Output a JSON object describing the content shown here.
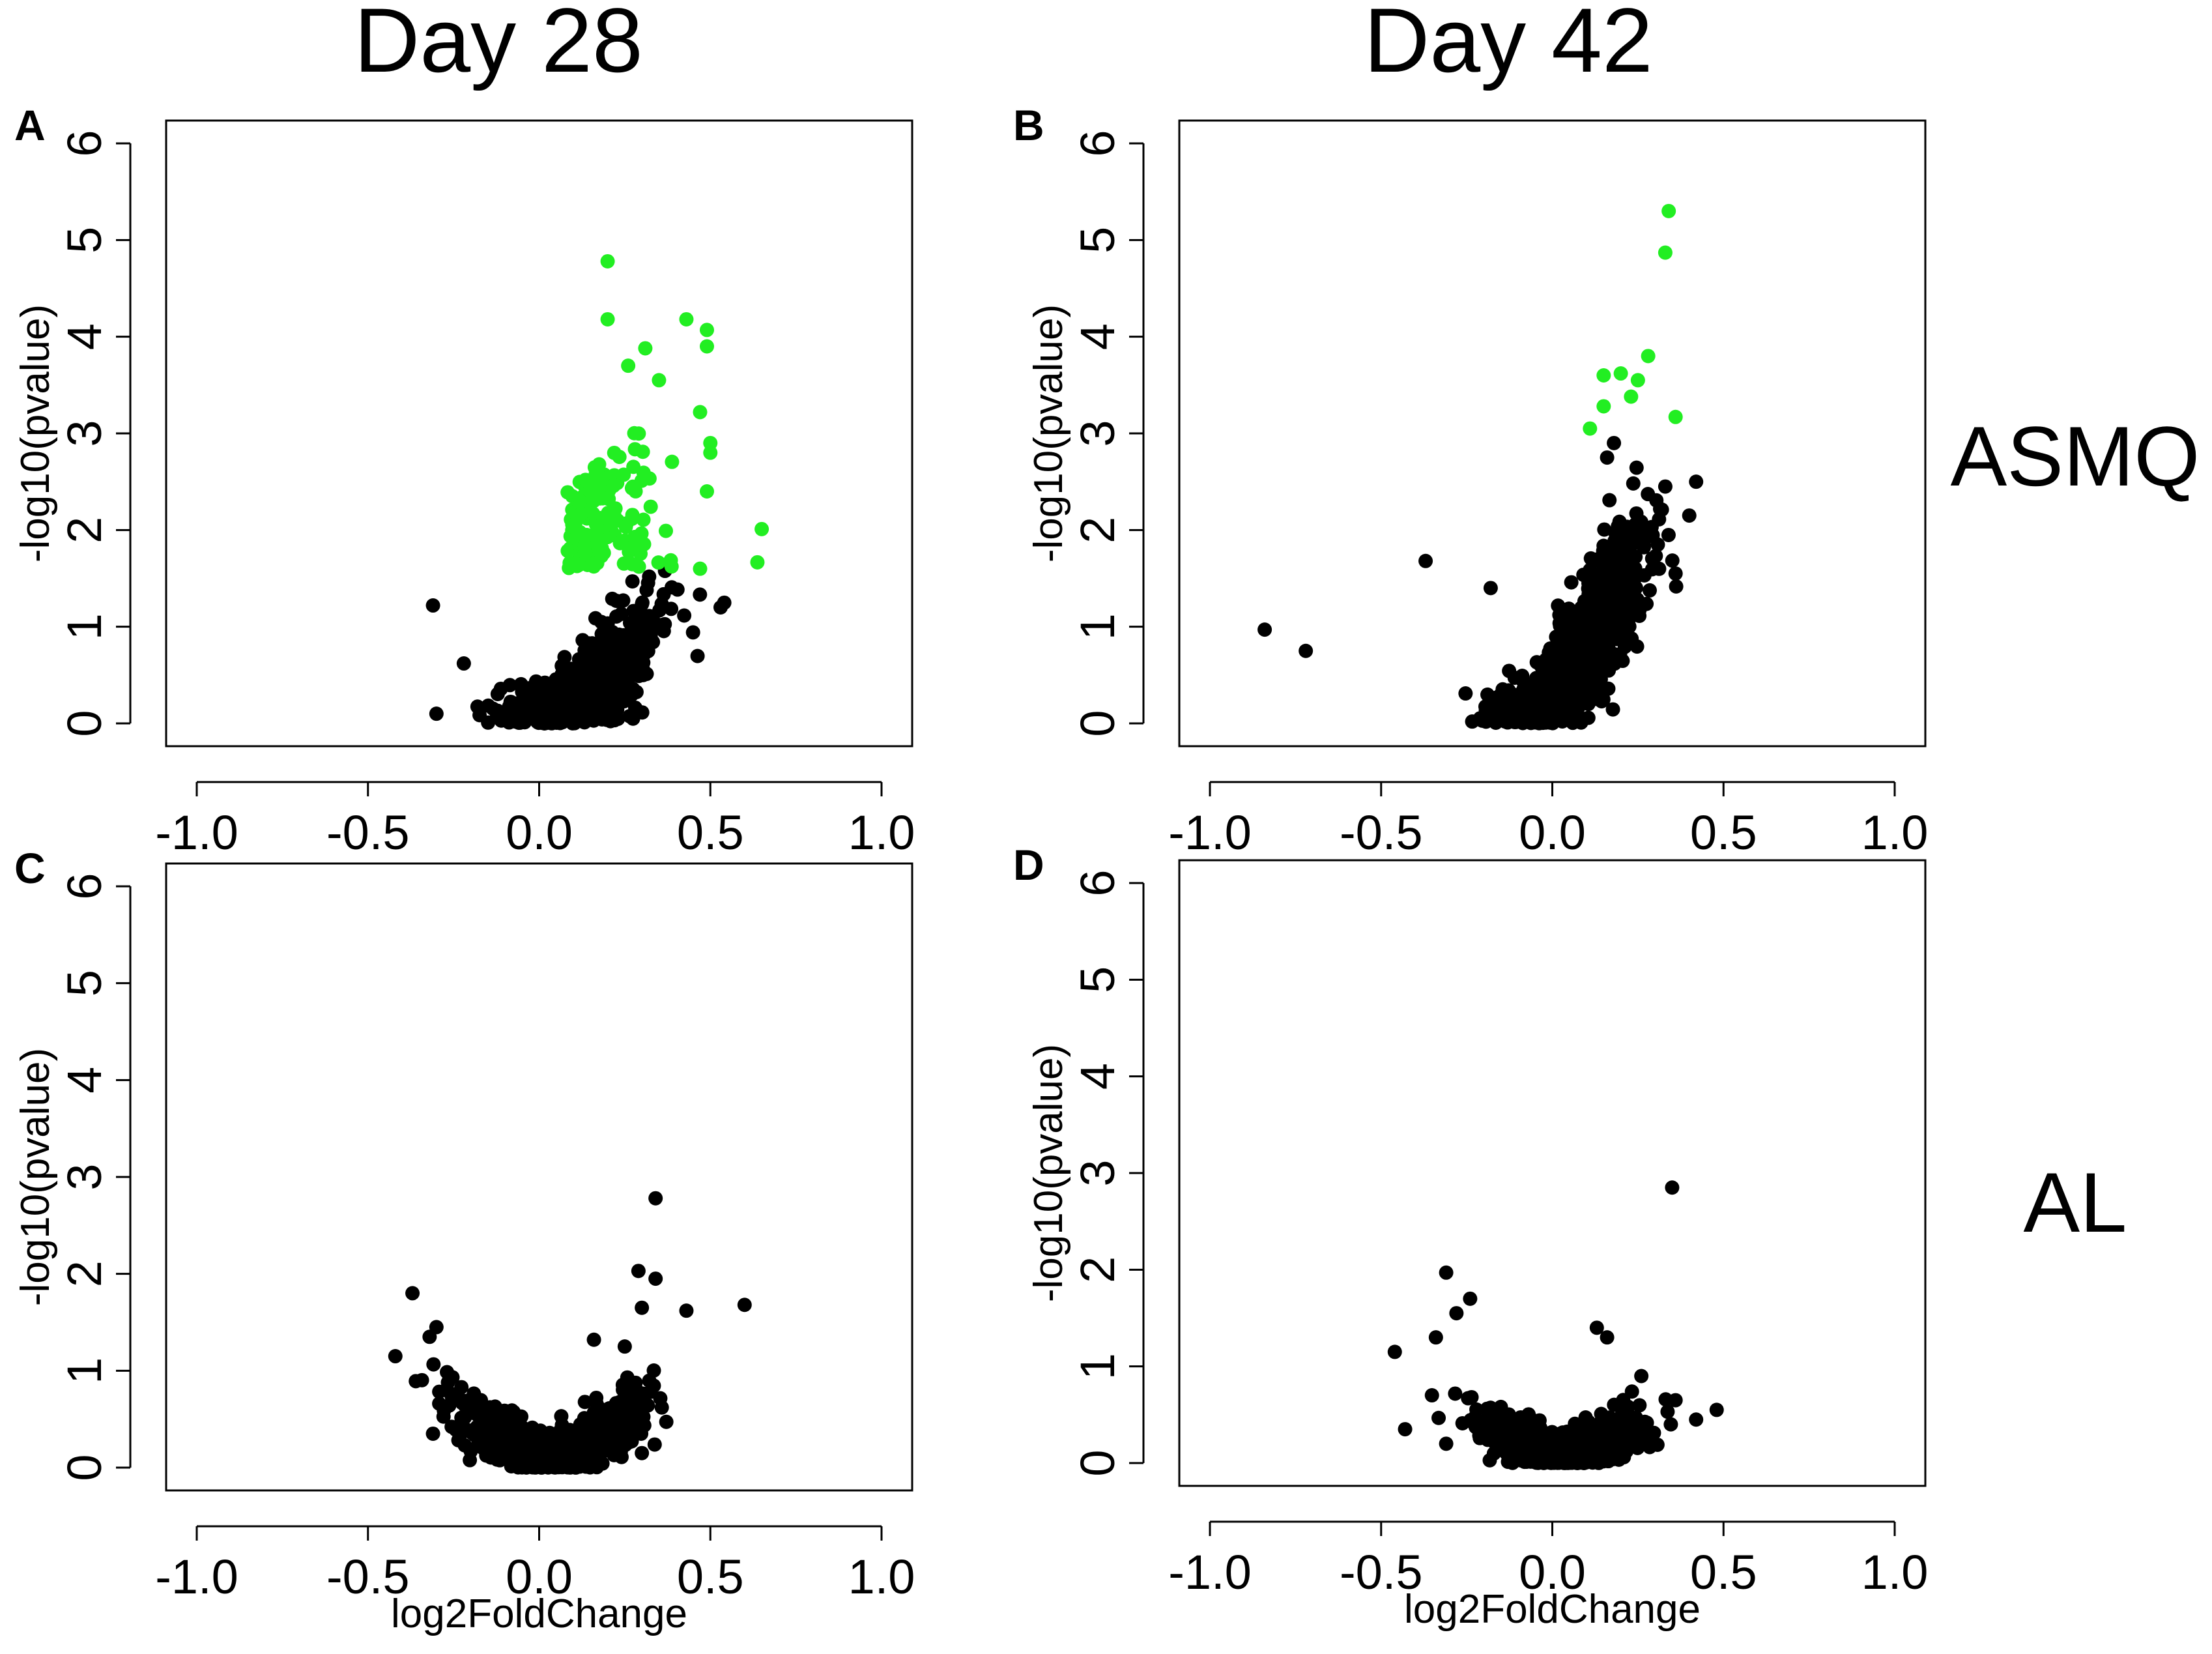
{
  "figure": {
    "columns": [
      "Day 28",
      "Day 42"
    ],
    "rows": [
      "ASMQ",
      "AL"
    ]
  },
  "colors": {
    "significant": "#22ee22",
    "not_significant": "#000000"
  },
  "chart_data": [
    {
      "type": "scatter",
      "panel": "A",
      "xlabel": "",
      "ylabel": "-log10(pvalue)",
      "xlim": [
        -1.0,
        1.0
      ],
      "ylim": [
        0,
        6
      ],
      "xticks": [
        "-1.0",
        "-0.5",
        "0.0",
        "0.5",
        "1.0"
      ],
      "yticks": [
        "0",
        "1",
        "2",
        "3",
        "4",
        "5",
        "6"
      ],
      "significance_threshold": 1.6,
      "cloud": {
        "n": 900,
        "x_center": 0.13,
        "x_spread": 0.11,
        "y_base_slope": 2.8,
        "y_noise": 0.45,
        "significant_fraction": 0.22,
        "seed": 11
      },
      "points": [
        {
          "x": 0.2,
          "y": 4.78,
          "sig": true
        },
        {
          "x": 0.2,
          "y": 4.18,
          "sig": true
        },
        {
          "x": 0.43,
          "y": 4.18,
          "sig": true
        },
        {
          "x": 0.49,
          "y": 4.07,
          "sig": true
        },
        {
          "x": 0.49,
          "y": 3.9,
          "sig": true
        },
        {
          "x": 0.31,
          "y": 3.88,
          "sig": true
        },
        {
          "x": 0.47,
          "y": 3.22,
          "sig": true
        },
        {
          "x": 0.5,
          "y": 2.9,
          "sig": true
        },
        {
          "x": 0.5,
          "y": 2.8,
          "sig": true
        },
        {
          "x": 0.65,
          "y": 2.01,
          "sig": true
        },
        {
          "x": 0.49,
          "y": 2.4,
          "sig": true
        },
        {
          "x": 0.47,
          "y": 1.6,
          "sig": true
        },
        {
          "x": 0.26,
          "y": 3.7,
          "sig": true
        },
        {
          "x": 0.35,
          "y": 3.55,
          "sig": true
        },
        {
          "x": -0.31,
          "y": 1.22,
          "sig": false
        },
        {
          "x": 0.53,
          "y": 1.2,
          "sig": false
        },
        {
          "x": -0.3,
          "y": 0.1,
          "sig": false
        },
        {
          "x": -0.22,
          "y": 0.62,
          "sig": false
        }
      ]
    },
    {
      "type": "scatter",
      "panel": "B",
      "xlabel": "",
      "ylabel": "-log10(pvalue)",
      "xlim": [
        -1.0,
        1.0
      ],
      "ylim": [
        0,
        6
      ],
      "xticks": [
        "-1.0",
        "-0.5",
        "0.0",
        "0.5",
        "1.0"
      ],
      "yticks": [
        "0",
        "1",
        "2",
        "3",
        "4",
        "5",
        "6"
      ],
      "significance_threshold": 3.0,
      "cloud": {
        "n": 1100,
        "x_center": 0.06,
        "x_spread": 0.1,
        "y_base_slope": 5.0,
        "y_noise": 0.5,
        "significant_fraction": 0,
        "seed": 23
      },
      "points": [
        {
          "x": 0.34,
          "y": 5.3,
          "sig": true
        },
        {
          "x": 0.33,
          "y": 4.87,
          "sig": true
        },
        {
          "x": 0.28,
          "y": 3.8,
          "sig": true
        },
        {
          "x": 0.2,
          "y": 3.62,
          "sig": true
        },
        {
          "x": 0.15,
          "y": 3.6,
          "sig": true
        },
        {
          "x": 0.25,
          "y": 3.55,
          "sig": true
        },
        {
          "x": 0.23,
          "y": 3.38,
          "sig": true
        },
        {
          "x": 0.15,
          "y": 3.28,
          "sig": true
        },
        {
          "x": 0.36,
          "y": 3.17,
          "sig": true
        },
        {
          "x": 0.11,
          "y": 3.05,
          "sig": true
        },
        {
          "x": -0.84,
          "y": 0.97,
          "sig": false
        },
        {
          "x": -0.72,
          "y": 0.75,
          "sig": false
        },
        {
          "x": -0.37,
          "y": 1.68,
          "sig": false
        },
        {
          "x": 0.42,
          "y": 2.5,
          "sig": false
        },
        {
          "x": 0.36,
          "y": 1.55,
          "sig": false
        },
        {
          "x": -0.18,
          "y": 1.4,
          "sig": false
        },
        {
          "x": 0.18,
          "y": 2.9,
          "sig": false
        },
        {
          "x": 0.16,
          "y": 2.75,
          "sig": false
        },
        {
          "x": 0.4,
          "y": 2.15,
          "sig": false
        },
        {
          "x": 0.33,
          "y": 2.45,
          "sig": false
        }
      ]
    },
    {
      "type": "scatter",
      "panel": "C",
      "xlabel": "log2FoldChange",
      "ylabel": "-log10(pvalue)",
      "xlim": [
        -1.0,
        1.0
      ],
      "ylim": [
        0,
        6
      ],
      "xticks": [
        "-1.0",
        "-0.5",
        "0.0",
        "0.5",
        "1.0"
      ],
      "yticks": [
        "0",
        "1",
        "2",
        "3",
        "4",
        "5",
        "6"
      ],
      "significance_threshold": null,
      "cloud": {
        "n": 1000,
        "x_center": 0.03,
        "x_spread": 0.12,
        "y_base_slope": 0,
        "y_vshape": 2.2,
        "y_noise": 0.32,
        "significant_fraction": 0,
        "seed": 37
      },
      "points": [
        {
          "x": 0.34,
          "y": 2.78,
          "sig": false
        },
        {
          "x": 0.29,
          "y": 2.03,
          "sig": false
        },
        {
          "x": 0.34,
          "y": 1.95,
          "sig": false
        },
        {
          "x": -0.37,
          "y": 1.8,
          "sig": false
        },
        {
          "x": 0.6,
          "y": 1.68,
          "sig": false
        },
        {
          "x": 0.3,
          "y": 1.65,
          "sig": false
        },
        {
          "x": 0.43,
          "y": 1.62,
          "sig": false
        },
        {
          "x": -0.42,
          "y": 1.15,
          "sig": false
        },
        {
          "x": -0.3,
          "y": 1.45,
          "sig": false
        },
        {
          "x": -0.32,
          "y": 1.35,
          "sig": false
        },
        {
          "x": -0.31,
          "y": 0.35,
          "sig": false
        },
        {
          "x": 0.3,
          "y": 0.15,
          "sig": false
        },
        {
          "x": 0.16,
          "y": 1.32,
          "sig": false
        },
        {
          "x": 0.25,
          "y": 1.25,
          "sig": false
        }
      ]
    },
    {
      "type": "scatter",
      "panel": "D",
      "xlabel": "log2FoldChange",
      "ylabel": "-log10(pvalue)",
      "xlim": [
        -1.0,
        1.0
      ],
      "ylim": [
        0,
        6
      ],
      "xticks": [
        "-1.0",
        "-0.5",
        "0.0",
        "0.5",
        "1.0"
      ],
      "yticks": [
        "0",
        "1",
        "2",
        "3",
        "4",
        "5",
        "6"
      ],
      "significance_threshold": null,
      "cloud": {
        "n": 1000,
        "x_center": 0.03,
        "x_spread": 0.11,
        "y_base_slope": 0,
        "y_vshape": 1.7,
        "y_noise": 0.3,
        "significant_fraction": 0,
        "seed": 53
      },
      "points": [
        {
          "x": 0.35,
          "y": 2.85,
          "sig": false
        },
        {
          "x": -0.31,
          "y": 1.97,
          "sig": false
        },
        {
          "x": -0.24,
          "y": 1.7,
          "sig": false
        },
        {
          "x": -0.28,
          "y": 1.55,
          "sig": false
        },
        {
          "x": -0.46,
          "y": 1.15,
          "sig": false
        },
        {
          "x": -0.34,
          "y": 1.3,
          "sig": false
        },
        {
          "x": -0.43,
          "y": 0.35,
          "sig": false
        },
        {
          "x": -0.31,
          "y": 0.2,
          "sig": false
        },
        {
          "x": 0.48,
          "y": 0.55,
          "sig": false
        },
        {
          "x": 0.42,
          "y": 0.45,
          "sig": false
        },
        {
          "x": 0.36,
          "y": 0.65,
          "sig": false
        },
        {
          "x": 0.26,
          "y": 0.9,
          "sig": false
        },
        {
          "x": 0.13,
          "y": 1.4,
          "sig": false
        },
        {
          "x": 0.16,
          "y": 1.3,
          "sig": false
        }
      ]
    }
  ]
}
